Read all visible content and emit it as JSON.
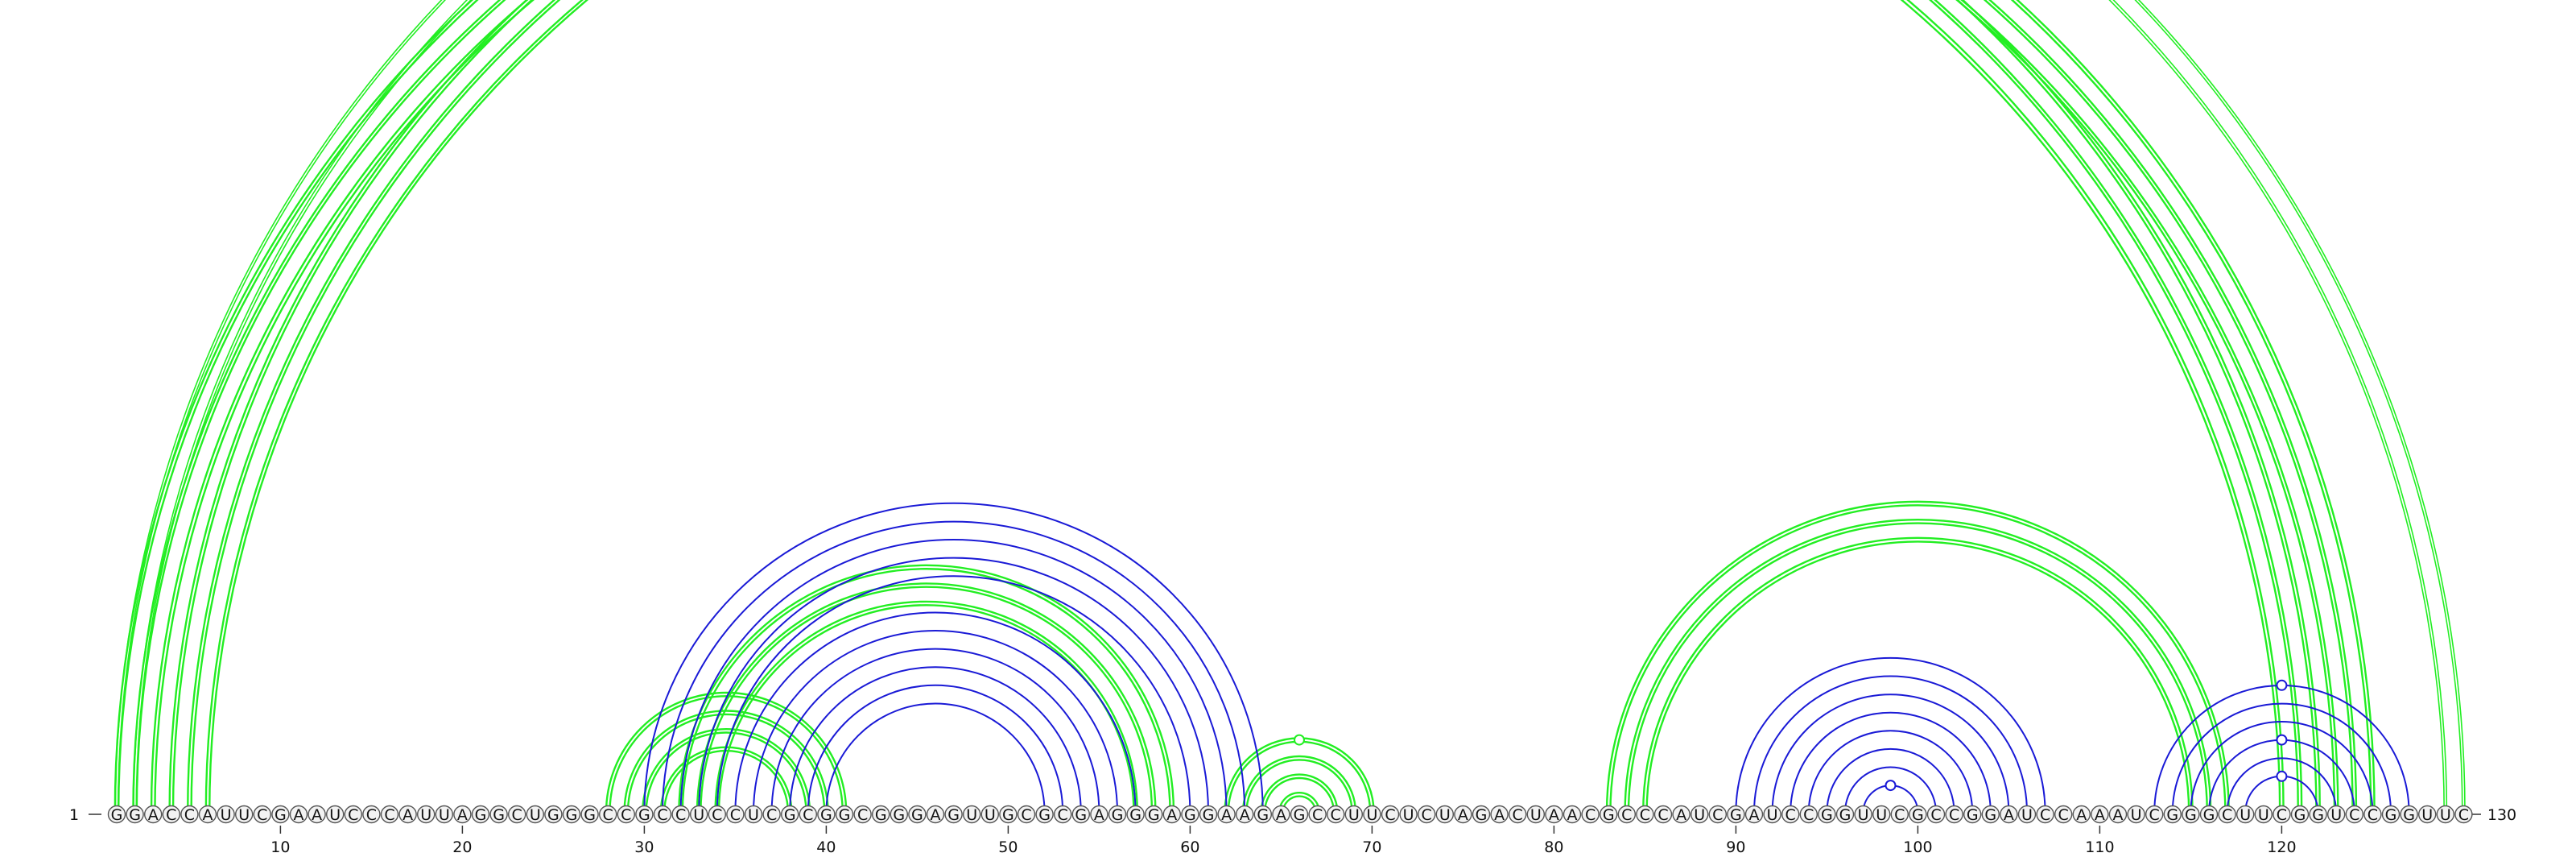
{
  "diagram": {
    "sequence": "GGACCAUUCGAAUCCCAUUAGGCUGGGCCGCCUCCUCGCGGCGGGAGUUGCGCGAGGGAGGAAGAGCCUUCUCUAGACUAACGCCCAUCGAUCCGGUUCGCCGGAUCCAAAUCGGGCUUCGGUCCGGUUC",
    "start_label": "1",
    "end_label": "130",
    "ticks": [
      10,
      20,
      30,
      40,
      50,
      60,
      70,
      80,
      90,
      100,
      110,
      120
    ],
    "colors": {
      "green": "#22ee22",
      "blue": "#1a1ad6"
    },
    "arc_groups": [
      {
        "color": "green",
        "thick": true,
        "pairs": [
          [
            1,
            122
          ],
          [
            2,
            121
          ],
          [
            3,
            120
          ]
        ]
      },
      {
        "color": "green",
        "thick": false,
        "pairs": [
          [
            1,
            130
          ],
          [
            2,
            129
          ]
        ]
      },
      {
        "color": "green",
        "thick": true,
        "pairs": [
          [
            4,
            125
          ],
          [
            5,
            124
          ],
          [
            6,
            123
          ]
        ]
      },
      {
        "color": "green",
        "thick": true,
        "pairs": [
          [
            28,
            41
          ],
          [
            29,
            40
          ],
          [
            30,
            39
          ],
          [
            31,
            38
          ]
        ]
      },
      {
        "color": "green",
        "thick": true,
        "pairs": [
          [
            32,
            59
          ],
          [
            33,
            58
          ],
          [
            34,
            57
          ]
        ]
      },
      {
        "color": "green",
        "thick": true,
        "pairs": [
          [
            62,
            70
          ],
          [
            63,
            69
          ],
          [
            64,
            68
          ],
          [
            65,
            67
          ]
        ]
      },
      {
        "color": "green",
        "thick": true,
        "pairs": [
          [
            83,
            117
          ],
          [
            84,
            116
          ],
          [
            85,
            115
          ]
        ]
      },
      {
        "color": "blue",
        "thick": false,
        "pairs": [
          [
            30,
            64
          ],
          [
            31,
            63
          ],
          [
            32,
            62
          ],
          [
            33,
            61
          ],
          [
            34,
            60
          ]
        ]
      },
      {
        "color": "blue",
        "thick": false,
        "pairs": [
          [
            35,
            57
          ],
          [
            36,
            56
          ],
          [
            37,
            55
          ],
          [
            38,
            54
          ],
          [
            39,
            53
          ],
          [
            40,
            52
          ]
        ]
      },
      {
        "color": "blue",
        "thick": false,
        "pairs": [
          [
            90,
            107
          ],
          [
            91,
            106
          ],
          [
            92,
            105
          ],
          [
            93,
            104
          ],
          [
            94,
            103
          ],
          [
            95,
            102
          ],
          [
            96,
            101
          ],
          [
            97,
            100
          ]
        ]
      },
      {
        "color": "blue",
        "thick": false,
        "pairs": [
          [
            113,
            127
          ],
          [
            114,
            126
          ],
          [
            115,
            125
          ],
          [
            116,
            124
          ],
          [
            117,
            123
          ],
          [
            118,
            122
          ]
        ]
      }
    ],
    "markers": [
      {
        "arc": [
          1,
          130
        ],
        "color": "green"
      },
      {
        "arc": [
          62,
          70
        ],
        "color": "green"
      },
      {
        "arc": [
          97,
          100
        ],
        "color": "blue"
      },
      {
        "arc": [
          113,
          127
        ],
        "color": "blue"
      },
      {
        "arc": [
          116,
          124
        ],
        "color": "blue"
      },
      {
        "arc": [
          118,
          122
        ],
        "color": "blue"
      }
    ]
  }
}
